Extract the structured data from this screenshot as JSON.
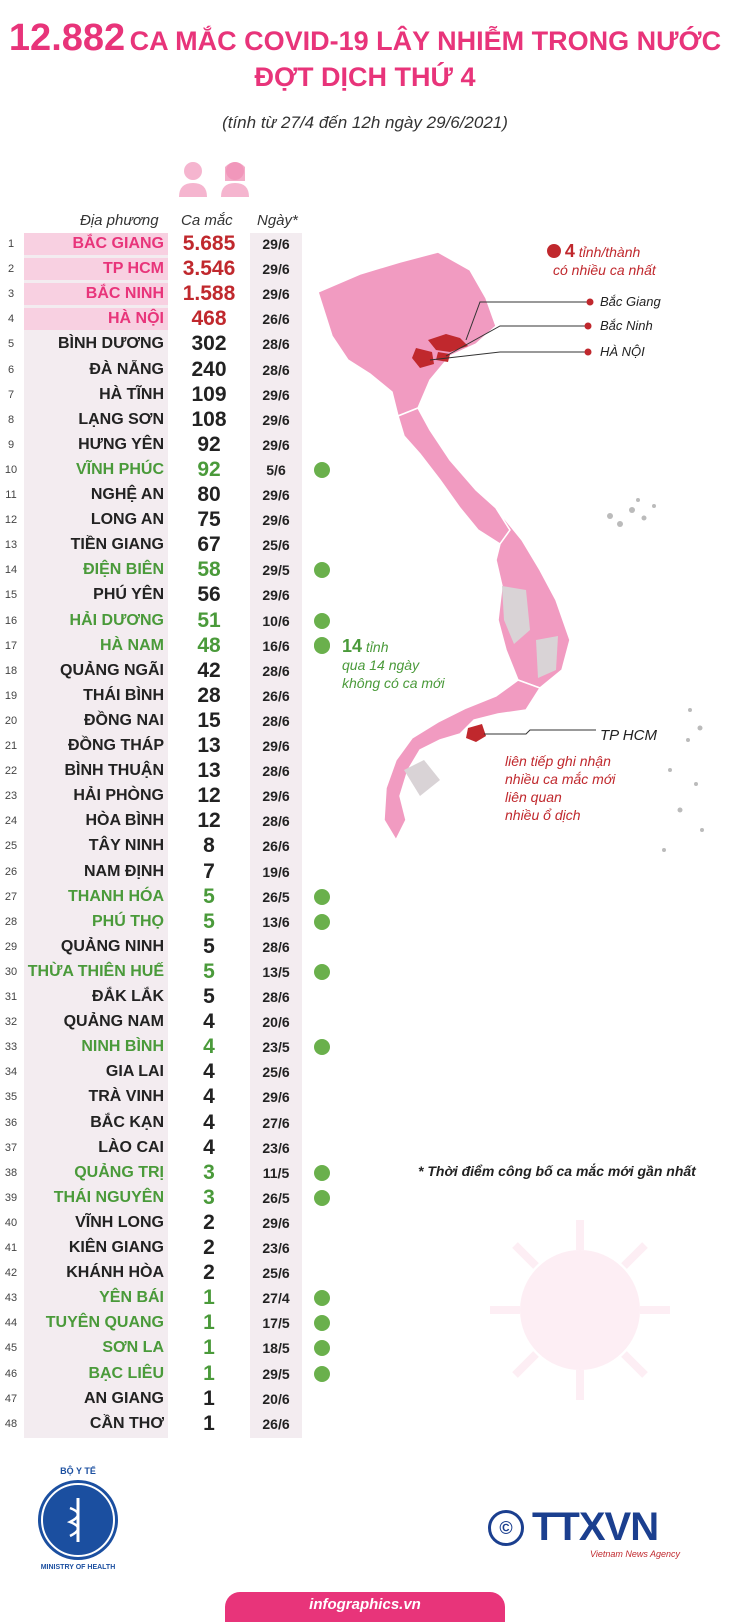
{
  "header": {
    "total": "12.882",
    "title_rest": "CA MẮC COVID-19 LÂY NHIỄM TRONG NƯỚC",
    "title_line2": "ĐỢT DỊCH THỨ 4",
    "subtitle": "(tính từ 27/4 đến 12h ngày 29/6/2021)"
  },
  "columns": {
    "province": "Địa phương",
    "cases": "Ca mắc",
    "date": "Ngày*"
  },
  "colors": {
    "pink": "#e8347a",
    "red": "#c0282d",
    "green": "#6ab04c",
    "green_text": "#4a9a3a",
    "dark": "#222222",
    "map_pink": "#f19bc1"
  },
  "rows": [
    {
      "num": "1",
      "name": "BẮC GIANG",
      "cases": "5.685",
      "date": "29/6",
      "type": "top"
    },
    {
      "num": "2",
      "name": "TP HCM",
      "cases": "3.546",
      "date": "29/6",
      "type": "top"
    },
    {
      "num": "3",
      "name": "BẮC NINH",
      "cases": "1.588",
      "date": "29/6",
      "type": "top"
    },
    {
      "num": "4",
      "name": "HÀ NỘI",
      "cases": "468",
      "date": "26/6",
      "type": "top"
    },
    {
      "num": "5",
      "name": "BÌNH DƯƠNG",
      "cases": "302",
      "date": "28/6",
      "type": "normal"
    },
    {
      "num": "6",
      "name": "ĐÀ NẴNG",
      "cases": "240",
      "date": "28/6",
      "type": "normal"
    },
    {
      "num": "7",
      "name": "HÀ TĨNH",
      "cases": "109",
      "date": "29/6",
      "type": "normal"
    },
    {
      "num": "8",
      "name": "LẠNG SƠN",
      "cases": "108",
      "date": "29/6",
      "type": "normal"
    },
    {
      "num": "9",
      "name": "HƯNG YÊN",
      "cases": "92",
      "date": "29/6",
      "type": "normal"
    },
    {
      "num": "10",
      "name": "VĨNH PHÚC",
      "cases": "92",
      "date": "5/6",
      "type": "green"
    },
    {
      "num": "11",
      "name": "NGHỆ AN",
      "cases": "80",
      "date": "29/6",
      "type": "normal"
    },
    {
      "num": "12",
      "name": "LONG AN",
      "cases": "75",
      "date": "29/6",
      "type": "normal"
    },
    {
      "num": "13",
      "name": "TIỀN GIANG",
      "cases": "67",
      "date": "25/6",
      "type": "normal"
    },
    {
      "num": "14",
      "name": "ĐIỆN BIÊN",
      "cases": "58",
      "date": "29/5",
      "type": "green"
    },
    {
      "num": "15",
      "name": "PHÚ YÊN",
      "cases": "56",
      "date": "29/6",
      "type": "normal"
    },
    {
      "num": "16",
      "name": "HẢI DƯƠNG",
      "cases": "51",
      "date": "10/6",
      "type": "green"
    },
    {
      "num": "17",
      "name": "HÀ NAM",
      "cases": "48",
      "date": "16/6",
      "type": "green"
    },
    {
      "num": "18",
      "name": "QUẢNG NGÃI",
      "cases": "42",
      "date": "28/6",
      "type": "normal"
    },
    {
      "num": "19",
      "name": "THÁI BÌNH",
      "cases": "28",
      "date": "26/6",
      "type": "normal"
    },
    {
      "num": "20",
      "name": "ĐỒNG NAI",
      "cases": "15",
      "date": "28/6",
      "type": "normal"
    },
    {
      "num": "21",
      "name": "ĐỒNG THÁP",
      "cases": "13",
      "date": "29/6",
      "type": "normal"
    },
    {
      "num": "22",
      "name": "BÌNH THUẬN",
      "cases": "13",
      "date": "28/6",
      "type": "normal"
    },
    {
      "num": "23",
      "name": "HẢI PHÒNG",
      "cases": "12",
      "date": "29/6",
      "type": "normal"
    },
    {
      "num": "24",
      "name": "HÒA BÌNH",
      "cases": "12",
      "date": "28/6",
      "type": "normal"
    },
    {
      "num": "25",
      "name": "TÂY NINH",
      "cases": "8",
      "date": "26/6",
      "type": "normal"
    },
    {
      "num": "26",
      "name": "NAM ĐỊNH",
      "cases": "7",
      "date": "19/6",
      "type": "normal"
    },
    {
      "num": "27",
      "name": "THANH HÓA",
      "cases": "5",
      "date": "26/5",
      "type": "green"
    },
    {
      "num": "28",
      "name": "PHÚ THỌ",
      "cases": "5",
      "date": "13/6",
      "type": "green"
    },
    {
      "num": "29",
      "name": "QUẢNG NINH",
      "cases": "5",
      "date": "28/6",
      "type": "normal"
    },
    {
      "num": "30",
      "name": "THỪA THIÊN HUẾ",
      "cases": "5",
      "date": "13/5",
      "type": "green"
    },
    {
      "num": "31",
      "name": "ĐẮK LẮK",
      "cases": "5",
      "date": "28/6",
      "type": "normal"
    },
    {
      "num": "32",
      "name": "QUẢNG NAM",
      "cases": "4",
      "date": "20/6",
      "type": "normal"
    },
    {
      "num": "33",
      "name": "NINH BÌNH",
      "cases": "4",
      "date": "23/5",
      "type": "green"
    },
    {
      "num": "34",
      "name": "GIA LAI",
      "cases": "4",
      "date": "25/6",
      "type": "normal"
    },
    {
      "num": "35",
      "name": "TRÀ VINH",
      "cases": "4",
      "date": "29/6",
      "type": "normal"
    },
    {
      "num": "36",
      "name": "BẮC KẠN",
      "cases": "4",
      "date": "27/6",
      "type": "normal"
    },
    {
      "num": "37",
      "name": "LÀO CAI",
      "cases": "4",
      "date": "23/6",
      "type": "normal"
    },
    {
      "num": "38",
      "name": "QUẢNG TRỊ",
      "cases": "3",
      "date": "11/5",
      "type": "green"
    },
    {
      "num": "39",
      "name": "THÁI NGUYÊN",
      "cases": "3",
      "date": "26/5",
      "type": "green"
    },
    {
      "num": "40",
      "name": "VĨNH LONG",
      "cases": "2",
      "date": "29/6",
      "type": "normal"
    },
    {
      "num": "41",
      "name": "KIÊN GIANG",
      "cases": "2",
      "date": "23/6",
      "type": "normal"
    },
    {
      "num": "42",
      "name": "KHÁNH HÒA",
      "cases": "2",
      "date": "25/6",
      "type": "normal"
    },
    {
      "num": "43",
      "name": "YÊN BÁI",
      "cases": "1",
      "date": "27/4",
      "type": "green"
    },
    {
      "num": "44",
      "name": "TUYÊN QUANG",
      "cases": "1",
      "date": "17/5",
      "type": "green"
    },
    {
      "num": "45",
      "name": "SƠN LA",
      "cases": "1",
      "date": "18/5",
      "type": "green"
    },
    {
      "num": "46",
      "name": "BẠC LIÊU",
      "cases": "1",
      "date": "29/5",
      "type": "green"
    },
    {
      "num": "47",
      "name": "AN GIANG",
      "cases": "1",
      "date": "20/6",
      "type": "normal"
    },
    {
      "num": "48",
      "name": "CẦN THƠ",
      "cases": "1",
      "date": "26/6",
      "type": "normal"
    }
  ],
  "map_legend": {
    "top_count": "4",
    "top_text_1": "tỉnh/thành",
    "top_text_2": "có nhiều ca nhất",
    "labels": [
      "Bắc Giang",
      "Bắc Ninh",
      "HÀ NỘI"
    ],
    "green_count": "14",
    "green_text_1": "tỉnh",
    "green_text_2": "qua 14 ngày",
    "green_text_3": "không có ca mới",
    "hcm_label": "TP HCM",
    "hcm_desc": [
      "liên tiếp ghi nhận",
      "nhiều ca mắc mới",
      "liên quan",
      "nhiều ổ dịch"
    ]
  },
  "note": "* Thời điểm công bố ca mắc mới gần nhất",
  "footer": {
    "site": "infographics.vn",
    "agency": "TTXVN",
    "agency_sub": "Vietnam News Agency",
    "ministry_top": "BỘ Y TẾ",
    "ministry_bottom": "MINISTRY OF HEALTH",
    "copyright": "©"
  },
  "icons": [
    "male-person-icon",
    "female-person-icon",
    "virus-icon",
    "copyright-icon"
  ]
}
